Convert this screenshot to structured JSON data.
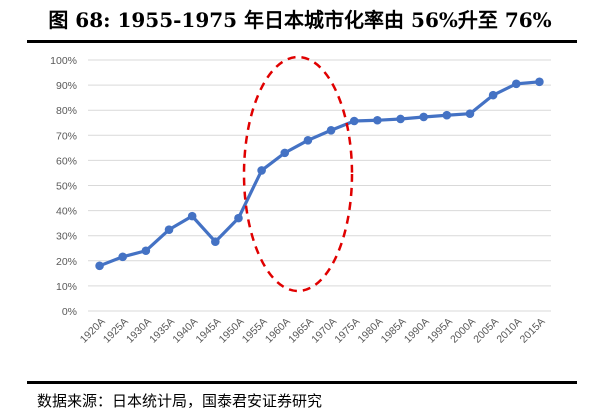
{
  "header": {
    "title": "图 68: 1955-1975 年日本城市化率由 56%升至 76%"
  },
  "footer": {
    "source": "数据来源：日本统计局，国泰君安证券研究"
  },
  "colors": {
    "line": "#4472C4",
    "ellipse": "#E00000",
    "grid": "#D9D9D9",
    "tick_text": "#595959"
  },
  "chart_data": {
    "type": "line",
    "title": "图 68: 1955-1975 年日本城市化率由 56%升至 76%",
    "xlabel": "",
    "ylabel": "",
    "categories": [
      "1920A",
      "1925A",
      "1930A",
      "1935A",
      "1940A",
      "1945A",
      "1950A",
      "1955A",
      "1960A",
      "1965A",
      "1970A",
      "1975A",
      "1980A",
      "1985A",
      "1990A",
      "1995A",
      "2000A",
      "2005A",
      "2010A",
      "2015A"
    ],
    "series": [
      {
        "name": "日本城市化率",
        "values": [
          18.0,
          21.6,
          24.0,
          32.4,
          37.8,
          27.6,
          37.0,
          56.0,
          63.0,
          68.0,
          72.0,
          75.7,
          76.0,
          76.5,
          77.3,
          78.0,
          78.6,
          86.0,
          90.5,
          91.3
        ]
      }
    ],
    "ylim": [
      0,
      100
    ],
    "yticks": [
      "0%",
      "10%",
      "20%",
      "30%",
      "40%",
      "50%",
      "60%",
      "70%",
      "80%",
      "90%",
      "100%"
    ],
    "grid": true,
    "legend": "none",
    "annotations": [
      {
        "type": "dashed-ellipse",
        "color": "#E00000",
        "highlights": [
          "1955A",
          "1975A"
        ]
      }
    ]
  }
}
